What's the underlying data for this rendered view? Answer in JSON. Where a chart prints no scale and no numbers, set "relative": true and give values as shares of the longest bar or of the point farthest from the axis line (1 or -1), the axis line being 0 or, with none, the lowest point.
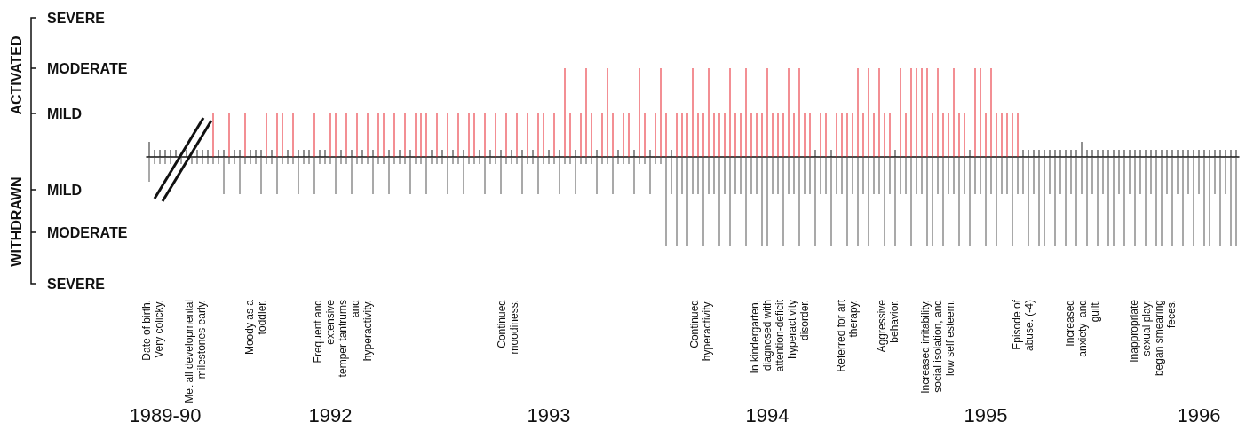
{
  "chart_data": {
    "type": "bar",
    "relative": true,
    "categories": [
      null,
      null,
      null,
      "1989-90",
      null,
      null,
      null,
      null,
      null,
      null,
      null,
      null,
      null,
      null,
      null,
      null,
      null,
      null,
      null,
      null,
      null,
      null,
      null,
      null,
      null,
      null,
      null,
      null,
      null,
      null,
      null,
      null,
      null,
      null,
      "1992",
      null,
      null,
      null,
      null,
      null,
      null,
      null,
      null,
      null,
      null,
      null,
      null,
      null,
      null,
      null,
      null,
      null,
      null,
      null,
      null,
      null,
      null,
      null,
      null,
      null,
      null,
      null,
      null,
      null,
      null,
      null,
      null,
      null,
      null,
      null,
      null,
      null,
      null,
      null,
      null,
      "1993",
      null,
      null,
      null,
      null,
      null,
      null,
      null,
      null,
      null,
      null,
      null,
      null,
      null,
      null,
      null,
      null,
      null,
      null,
      null,
      null,
      null,
      null,
      null,
      null,
      null,
      null,
      null,
      null,
      null,
      null,
      null,
      null,
      null,
      null,
      null,
      null,
      null,
      null,
      null,
      null,
      "1994",
      null,
      null,
      null,
      null,
      null,
      null,
      null,
      null,
      null,
      null,
      null,
      null,
      null,
      null,
      null,
      null,
      null,
      null,
      null,
      null,
      null,
      null,
      null,
      null,
      null,
      null,
      null,
      null,
      null,
      null,
      null,
      null,
      null,
      null,
      null,
      null,
      null,
      null,
      null,
      null,
      "1995",
      null,
      null,
      null,
      null,
      null,
      null,
      null,
      null,
      null,
      null,
      null,
      null,
      null,
      null,
      null,
      null,
      null,
      null,
      null,
      null,
      null,
      null,
      null,
      null,
      null,
      null,
      null,
      null,
      null,
      null,
      null,
      null,
      null,
      null,
      null,
      null,
      null,
      null,
      null,
      "1996",
      null,
      null,
      null,
      null,
      null,
      null,
      null
    ],
    "series": [
      {
        "color": "#e8202a",
        "values": [
          null,
          null,
          null,
          null,
          null,
          null,
          null,
          null,
          null,
          null,
          null,
          null,
          0.5,
          null,
          null,
          0.5,
          null,
          null,
          0.5,
          null,
          null,
          null,
          0.5,
          null,
          0.5,
          0.5,
          null,
          0.5,
          null,
          null,
          null,
          0.5,
          null,
          null,
          0.5,
          0.5,
          null,
          0.5,
          null,
          0.5,
          null,
          0.5,
          null,
          0.5,
          0.5,
          null,
          0.5,
          null,
          0.5,
          null,
          0.5,
          0.5,
          0.5,
          null,
          0.5,
          null,
          0.5,
          null,
          0.5,
          null,
          0.5,
          0.5,
          null,
          0.5,
          null,
          0.5,
          null,
          0.5,
          null,
          0.5,
          null,
          0.5,
          null,
          0.5,
          0.5,
          null,
          0.5,
          null,
          1,
          0.5,
          null,
          0.5,
          1,
          0.5,
          null,
          0.5,
          1,
          0.5,
          null,
          0.5,
          0.5,
          null,
          1,
          0.5,
          null,
          0.5,
          1,
          0.5,
          null,
          0.5,
          0.5,
          0.5,
          1,
          0.5,
          0.5,
          1,
          0.5,
          0.5,
          0.5,
          1,
          0.5,
          0.5,
          1,
          0.5,
          0.5,
          0.5,
          1,
          0.5,
          0.5,
          0.5,
          1,
          0.5,
          1,
          0.5,
          0.5,
          null,
          0.5,
          0.5,
          null,
          0.5,
          0.5,
          0.5,
          0.5,
          1,
          0.5,
          1,
          0.5,
          1,
          0.5,
          0.5,
          null,
          1,
          0.5,
          1,
          1,
          1,
          1,
          0.5,
          1,
          0.5,
          0.5,
          1,
          0.5,
          0.5,
          null,
          1,
          1,
          0.5,
          1,
          0.5,
          0.5,
          0.5,
          0.5,
          0.5,
          null,
          null,
          null,
          null,
          null,
          null,
          null,
          null,
          null,
          null,
          null,
          null,
          null,
          null,
          null,
          null,
          null,
          null,
          null,
          null,
          null,
          null,
          null,
          null,
          null,
          null,
          null,
          null,
          null,
          null,
          null,
          null,
          null,
          null,
          null,
          null,
          null,
          null,
          null,
          null,
          null
        ]
      },
      {
        "color": "#222222",
        "values": [
          0.17,
          0.08,
          0.08,
          0.08,
          0.08,
          0.08,
          null,
          0.08,
          null,
          0.08,
          0.08,
          0.08,
          null,
          0.08,
          0.08,
          null,
          0.08,
          0.08,
          null,
          0.08,
          0.08,
          0.08,
          null,
          0.08,
          null,
          null,
          0.08,
          null,
          0.08,
          0.08,
          0.08,
          null,
          0.08,
          0.08,
          null,
          null,
          0.08,
          null,
          0.08,
          null,
          0.08,
          null,
          0.08,
          null,
          null,
          0.08,
          null,
          0.08,
          null,
          0.08,
          null,
          null,
          null,
          0.08,
          null,
          0.08,
          null,
          0.08,
          null,
          0.08,
          null,
          null,
          0.08,
          null,
          0.08,
          null,
          0.08,
          null,
          0.08,
          null,
          0.08,
          null,
          0.08,
          null,
          null,
          0.08,
          null,
          0.08,
          null,
          null,
          0.08,
          null,
          null,
          null,
          0.08,
          null,
          null,
          null,
          0.08,
          null,
          null,
          0.08,
          null,
          null,
          0.08,
          null,
          null,
          null,
          0.08,
          null,
          null,
          null,
          null,
          null,
          null,
          null,
          null,
          null,
          null,
          null,
          null,
          null,
          null,
          null,
          null,
          null,
          null,
          null,
          null,
          null,
          null,
          null,
          null,
          null,
          null,
          0.08,
          null,
          null,
          0.08,
          null,
          null,
          null,
          null,
          null,
          null,
          null,
          null,
          null,
          null,
          null,
          0.08,
          null,
          null,
          null,
          null,
          null,
          null,
          null,
          null,
          null,
          null,
          null,
          null,
          null,
          0.08,
          null,
          null,
          null,
          null,
          null,
          null,
          null,
          null,
          null,
          0.08,
          0.08,
          0.08,
          0.08,
          0.08,
          0.08,
          0.08,
          0.08,
          0.08,
          0.08,
          0.08,
          0.17,
          0.08,
          0.08,
          0.08,
          0.08,
          0.08,
          0.08,
          0.08,
          0.08,
          0.08,
          0.08,
          0.08,
          0.08,
          0.08,
          0.08,
          0.08,
          0.08,
          0.08,
          0.08,
          0.08,
          0.08,
          0.08,
          0.08,
          0.08,
          0.08,
          0.08,
          0.08,
          0.08,
          0.08,
          0.08
        ]
      },
      {
        "color": "#555555",
        "values": [
          -0.28,
          -0.08,
          -0.08,
          -0.08,
          -0.08,
          null,
          -0.08,
          null,
          -0.08,
          -0.08,
          -0.08,
          -0.08,
          -0.08,
          -0.08,
          -0.42,
          -0.08,
          -0.08,
          -0.42,
          -0.08,
          -0.08,
          -0.08,
          -0.42,
          -0.08,
          -0.08,
          -0.42,
          -0.08,
          -0.08,
          -0.08,
          -0.42,
          -0.08,
          -0.08,
          -0.42,
          -0.08,
          -0.08,
          -0.08,
          -0.42,
          -0.08,
          -0.08,
          -0.42,
          -0.08,
          -0.08,
          -0.08,
          -0.42,
          -0.08,
          -0.08,
          -0.42,
          -0.08,
          -0.08,
          -0.08,
          -0.42,
          -0.08,
          -0.08,
          -0.42,
          -0.08,
          -0.08,
          -0.08,
          -0.42,
          -0.08,
          -0.08,
          -0.42,
          -0.08,
          -0.08,
          -0.08,
          -0.42,
          -0.08,
          -0.08,
          -0.42,
          -0.08,
          -0.08,
          -0.08,
          -0.42,
          -0.08,
          -0.08,
          -0.42,
          -0.08,
          -0.08,
          -0.08,
          -0.42,
          -0.08,
          -0.08,
          -0.42,
          -0.08,
          -0.08,
          -0.08,
          -0.42,
          -0.08,
          -0.08,
          -0.42,
          -0.08,
          -0.08,
          -0.08,
          -0.42,
          -0.08,
          -0.08,
          -0.42,
          -0.08,
          -0.08,
          -1,
          -0.42,
          -1,
          -0.42,
          -1,
          -0.42,
          -0.42,
          -1,
          -0.42,
          -0.42,
          -1,
          -0.42,
          -1,
          -0.42,
          -0.42,
          -1,
          -0.42,
          -0.42,
          -1,
          -1,
          -0.42,
          -0.42,
          -1,
          -0.42,
          -0.42,
          -1,
          -0.42,
          -0.42,
          -1,
          -0.42,
          -0.42,
          -1,
          -0.42,
          -0.42,
          -1,
          -0.42,
          -1,
          -0.42,
          -1,
          -0.42,
          -0.42,
          -1,
          -0.42,
          -1,
          -0.42,
          -0.42,
          -1,
          -0.42,
          -0.42,
          -1,
          -1,
          -0.42,
          -1,
          -0.42,
          -0.42,
          -1,
          -0.42,
          -1,
          -0.42,
          -0.42,
          -1,
          -0.42,
          -1,
          -0.42,
          -0.42,
          -1,
          -0.42,
          -0.42,
          -1,
          -0.42,
          -1,
          -1,
          -0.42,
          -1,
          -0.42,
          -1,
          -0.42,
          -1,
          -0.42,
          -1,
          -0.42,
          -1,
          -0.42,
          -1,
          -1,
          -0.42,
          -1,
          -0.42,
          -1,
          -0.42,
          -1,
          -0.42,
          -1,
          -1,
          -0.42,
          -1,
          -0.42,
          -1,
          -0.42,
          -1,
          -0.42,
          -1,
          -1,
          -0.42,
          -1,
          -0.42,
          -1,
          -1
        ]
      }
    ],
    "annotations": [
      "ACTIVATED",
      "WITHDRAWN",
      "SEVERE",
      "MODERATE",
      "MILD",
      "MILD",
      "MODERATE",
      "SEVERE",
      "Date of birth.\nVery colicky.",
      "Met all developmental\nmilestones early.",
      "Moody as a\ntoddler.",
      "Frequent and\nextensive\ntemper tantrums\nand\nhyperactivity.",
      "Continued\nmoodiness.",
      "Continued\nhyperactivity.",
      "In kindergarten,\ndiagnosed with\nattention-deficit\nhyperactivity\ndisorder.",
      "Referred for art\ntherapy.",
      "Aggressive\nbehavior.",
      "Increased irritability,\nsocial isolation, and\nlow self esteem.",
      "Episode of\nabuse. (-4)",
      "Increased\nanxiety  and\nguilt.",
      "Inappropriate\nsexual play;\nbegan smearing\nfeces."
    ]
  }
}
